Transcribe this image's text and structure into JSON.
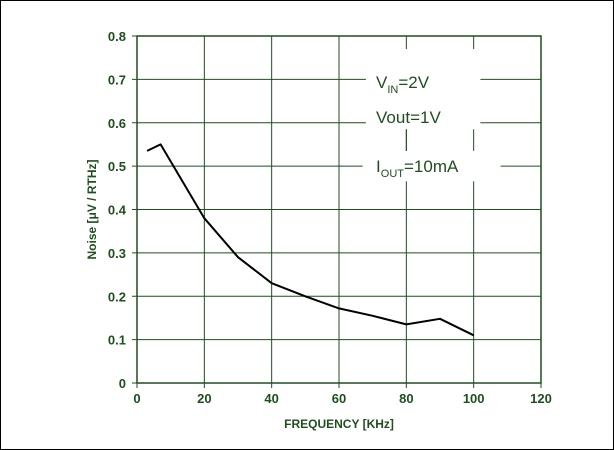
{
  "colors": {
    "grid": "#1f4f1f",
    "line": "#000000",
    "text": "#1f4f1f",
    "background": "#ffffff"
  },
  "chart_data": {
    "type": "line",
    "title": "",
    "xlabel": "FREQUENCY [KHz]",
    "ylabel": "Noise  [μV / RTHz]",
    "xlim": [
      0,
      120
    ],
    "ylim": [
      0,
      0.8
    ],
    "x_ticks": [
      0,
      20,
      40,
      60,
      80,
      100,
      120
    ],
    "y_ticks": [
      0,
      0.1,
      0.2,
      0.3,
      0.4,
      0.5,
      0.6,
      0.7,
      0.8
    ],
    "x_tick_labels": [
      "0",
      "20",
      "40",
      "60",
      "80",
      "100",
      "120"
    ],
    "y_tick_labels": [
      "0",
      "0.1",
      "0.2",
      "0.3",
      "0.4",
      "0.5",
      "0.6",
      "0.7",
      "0.8"
    ],
    "grid": true,
    "legend": "none",
    "series": [
      {
        "x": [
          3,
          7,
          20,
          30,
          40,
          50,
          60,
          70,
          80,
          90,
          100
        ],
        "y": [
          0.535,
          0.55,
          0.38,
          0.29,
          0.23,
          0.2,
          0.172,
          0.155,
          0.135,
          0.148,
          0.11
        ]
      }
    ],
    "annotations": [
      {
        "main": "V",
        "sub": "IN",
        "rest": "=2V"
      },
      {
        "main": "Vout=1V",
        "sub": "",
        "rest": ""
      },
      {
        "main": "I",
        "sub": "OUT",
        "rest": "=10mA"
      }
    ]
  }
}
